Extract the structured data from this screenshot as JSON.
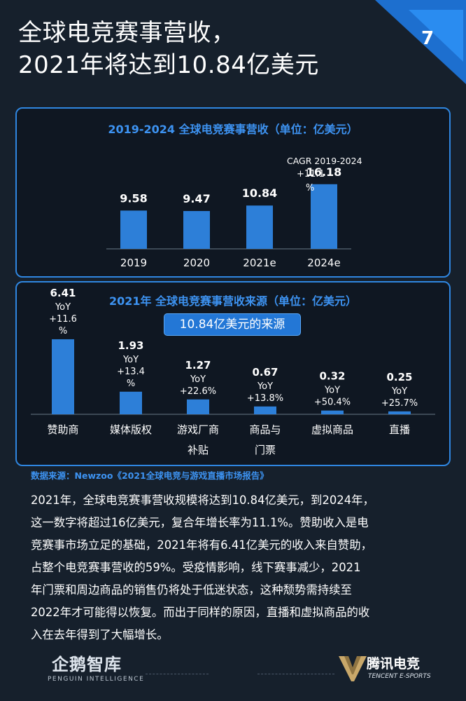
{
  "title_line1": "全球电竞赛事营收，",
  "title_line2": "2021年将达到10.84亿美元",
  "page_number": "7",
  "colors": {
    "accent": "#2d7fd8",
    "background": "#16202c",
    "title_blue": "#3d93f2"
  },
  "chart_data": [
    {
      "type": "bar",
      "title": "2019-2024 全球电竞赛事营收（单位：亿美元）",
      "categories": [
        "2019",
        "2020",
        "2021e",
        "2024e"
      ],
      "values": [
        9.58,
        9.47,
        10.84,
        16.18
      ],
      "value_labels": [
        "9.58",
        "9.47",
        "10.84",
        "16.18"
      ],
      "annotation": {
        "line1": "CAGR 2019-2024",
        "line2": "+11.1",
        "line3": "%"
      },
      "xlabel": "",
      "ylabel": ""
    },
    {
      "type": "bar",
      "title": "2021年 全球电竞赛事营收来源（单位：亿美元）",
      "subtitle": "10.84亿美元的来源",
      "categories": [
        "赞助商",
        "媒体版权",
        "游戏厂商补贴",
        "商品与门票",
        "虚拟商品",
        "直播"
      ],
      "category_lines": [
        [
          "赞助商"
        ],
        [
          "媒体版权"
        ],
        [
          "游戏厂商",
          "补贴"
        ],
        [
          "商品与",
          "门票"
        ],
        [
          "虚拟商品"
        ],
        [
          "直播"
        ]
      ],
      "values": [
        6.41,
        1.93,
        1.27,
        0.67,
        0.32,
        0.25
      ],
      "value_labels": [
        "6.41",
        "1.93",
        "1.27",
        "0.67",
        "0.32",
        "0.25"
      ],
      "yoy_prefix": "YoY",
      "yoy": [
        [
          "+11.6",
          "%"
        ],
        [
          "+13.4",
          "%"
        ],
        [
          "+22.6%"
        ],
        [
          "+13.8%"
        ],
        [
          "+50.4%"
        ],
        [
          "+25.7%"
        ]
      ],
      "xlabel": "",
      "ylabel": ""
    }
  ],
  "source": "数据来源：Newzoo《2021全球电竞与游戏直播市场报告》",
  "body_lines": [
    "2021年，全球电竞赛事营收规模将达到10.84亿美元，到2024年，",
    "这一数字将超过16亿美元，复合年增长率为11.1%。赞助收入是电",
    "竞赛事市场立足的基础，2021年将有6.41亿美元的收入来自赞助，",
    "占整个电竞赛事营收的59%。受疫情影响，线下赛事减少，2021",
    "年门票和周边商品的销售仍将处于低迷状态，这种颓势需持续至",
    "2022年才可能得以恢复。而出于同样的原因，直播和虚拟商品的收",
    "入在去年得到了大幅增长。"
  ],
  "footer": {
    "left_logo": "企鹅智库",
    "left_logo_sub": "PENGUIN INTELLIGENCE",
    "right_logo": "腾讯电竞",
    "right_logo_sub": "TENCENT E-SPORTS"
  }
}
